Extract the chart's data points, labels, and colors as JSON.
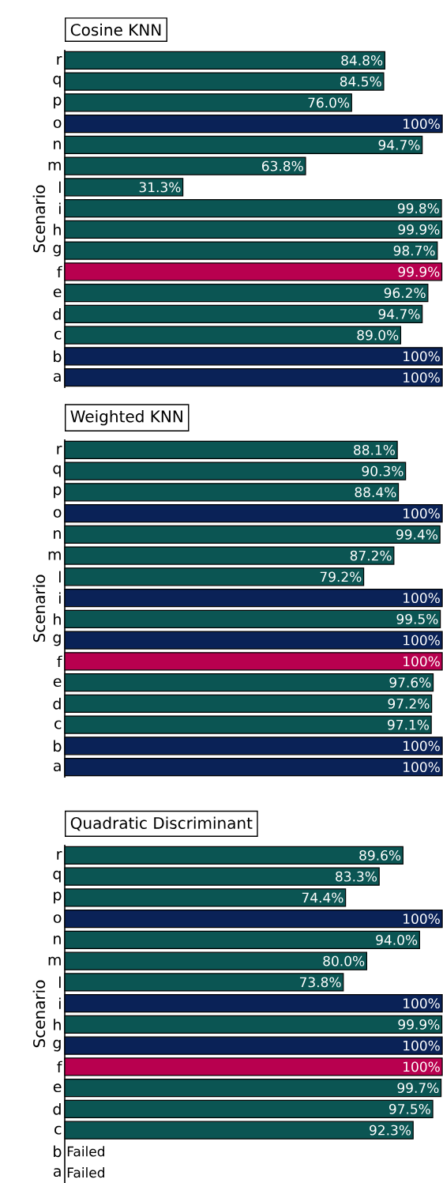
{
  "chart_data": [
    {
      "type": "bar",
      "orientation": "horizontal",
      "title": "Cosine KNN",
      "ylabel": "Scenario",
      "tick_labels": "y",
      "xlim": [
        0,
        100
      ],
      "categories": [
        "r",
        "q",
        "p",
        "o",
        "n",
        "m",
        "l",
        "i",
        "h",
        "g",
        "f",
        "e",
        "d",
        "c",
        "b",
        "a"
      ],
      "values": [
        84.8,
        84.5,
        76.0,
        100,
        94.7,
        63.8,
        31.3,
        99.8,
        99.9,
        98.7,
        99.9,
        96.2,
        94.7,
        89.0,
        100,
        100
      ],
      "value_labels": [
        "84.8%",
        "84.5%",
        "76.0%",
        "100%",
        "94.7%",
        "63.8%",
        "31.3%",
        "99.8%",
        "99.9%",
        "98.7%",
        "99.9%",
        "96.2%",
        "94.7%",
        "89.0%",
        "100%",
        "100%"
      ],
      "colors": [
        "#0b5553",
        "#0b5553",
        "#0b5553",
        "#0a2257",
        "#0b5553",
        "#0b5553",
        "#0b5553",
        "#0b5553",
        "#0b5553",
        "#0b5553",
        "#b8004f",
        "#0b5553",
        "#0b5553",
        "#0b5553",
        "#0a2257",
        "#0a2257"
      ]
    },
    {
      "type": "bar",
      "orientation": "horizontal",
      "title": "Weighted KNN",
      "ylabel": "Scenario",
      "tick_labels": "y",
      "xlim": [
        0,
        100
      ],
      "categories": [
        "r",
        "q",
        "p",
        "o",
        "n",
        "m",
        "l",
        "i",
        "h",
        "g",
        "f",
        "e",
        "d",
        "c",
        "b",
        "a"
      ],
      "values": [
        88.1,
        90.3,
        88.4,
        100,
        99.4,
        87.2,
        79.2,
        100,
        99.5,
        100,
        100,
        97.6,
        97.2,
        97.1,
        100,
        100
      ],
      "value_labels": [
        "88.1%",
        "90.3%",
        "88.4%",
        "100%",
        "99.4%",
        "87.2%",
        "79.2%",
        "100%",
        "99.5%",
        "100%",
        "100%",
        "97.6%",
        "97.2%",
        "97.1%",
        "100%",
        "100%"
      ],
      "colors": [
        "#0b5553",
        "#0b5553",
        "#0b5553",
        "#0a2257",
        "#0b5553",
        "#0b5553",
        "#0b5553",
        "#0a2257",
        "#0b5553",
        "#0a2257",
        "#b8004f",
        "#0b5553",
        "#0b5553",
        "#0b5553",
        "#0a2257",
        "#0a2257"
      ]
    },
    {
      "type": "bar",
      "orientation": "horizontal",
      "title": "Quadratic Discriminant",
      "ylabel": "Scenario",
      "tick_labels": "y",
      "xlim": [
        0,
        100
      ],
      "categories": [
        "r",
        "q",
        "p",
        "o",
        "n",
        "m",
        "l",
        "i",
        "h",
        "g",
        "f",
        "e",
        "d",
        "c",
        "b",
        "a"
      ],
      "values": [
        89.6,
        83.3,
        74.4,
        100,
        94.0,
        80.0,
        73.8,
        100,
        99.9,
        100,
        100,
        99.7,
        97.5,
        92.3,
        null,
        null
      ],
      "value_labels": [
        "89.6%",
        "83.3%",
        "74.4%",
        "100%",
        "94.0%",
        "80.0%",
        "73.8%",
        "100%",
        "99.9%",
        "100%",
        "100%",
        "99.7%",
        "97.5%",
        "92.3%",
        "Failed",
        "Failed"
      ],
      "colors": [
        "#0b5553",
        "#0b5553",
        "#0b5553",
        "#0a2257",
        "#0b5553",
        "#0b5553",
        "#0b5553",
        "#0a2257",
        "#0b5553",
        "#0a2257",
        "#b8004f",
        "#0b5553",
        "#0b5553",
        "#0b5553",
        null,
        null
      ]
    }
  ]
}
